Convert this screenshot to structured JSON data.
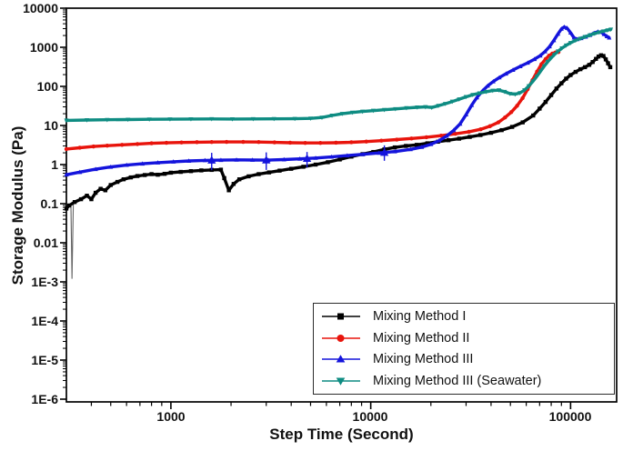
{
  "chart_data": {
    "type": "line",
    "scale": "log-log",
    "title": "",
    "xlabel": "Step Time (Second)",
    "ylabel": "Storage Modulus (Pa)",
    "xlim": [
      300,
      170000
    ],
    "ylim": [
      1e-06,
      10000
    ],
    "grid": false,
    "legend_position": "bottom-right",
    "x_tick_labels": [
      "1000",
      "10000",
      "100000"
    ],
    "x_tick_values": [
      1000,
      10000,
      100000
    ],
    "y_tick_labels": [
      "10000",
      "1000",
      "100",
      "10",
      "1",
      "0.1",
      "0.01",
      "1E-3",
      "1E-4",
      "1E-5",
      "1E-6"
    ],
    "y_tick_values": [
      10000,
      1000,
      100,
      10,
      1,
      0.1,
      0.01,
      0.001,
      0.0001,
      1e-05,
      1e-06
    ],
    "series": [
      {
        "name": "Mixing Method I",
        "color": "#000000",
        "marker": "square",
        "points": [
          [
            300,
            0.075
          ],
          [
            310,
            0.09
          ],
          [
            330,
            0.11
          ],
          [
            355,
            0.13
          ],
          [
            380,
            0.16
          ],
          [
            400,
            0.13
          ],
          [
            420,
            0.19
          ],
          [
            445,
            0.24
          ],
          [
            470,
            0.22
          ],
          [
            500,
            0.3
          ],
          [
            540,
            0.36
          ],
          [
            580,
            0.42
          ],
          [
            630,
            0.47
          ],
          [
            680,
            0.51
          ],
          [
            740,
            0.54
          ],
          [
            800,
            0.57
          ],
          [
            860,
            0.55
          ],
          [
            930,
            0.58
          ],
          [
            1000,
            0.62
          ],
          [
            1120,
            0.65
          ],
          [
            1260,
            0.68
          ],
          [
            1420,
            0.71
          ],
          [
            1600,
            0.73
          ],
          [
            1780,
            0.74
          ],
          [
            1850,
            0.45
          ],
          [
            1950,
            0.22
          ],
          [
            2060,
            0.32
          ],
          [
            2200,
            0.42
          ],
          [
            2450,
            0.5
          ],
          [
            2750,
            0.57
          ],
          [
            3100,
            0.63
          ],
          [
            3500,
            0.7
          ],
          [
            4000,
            0.78
          ],
          [
            4600,
            0.88
          ],
          [
            5300,
            1.0
          ],
          [
            6100,
            1.15
          ],
          [
            7000,
            1.35
          ],
          [
            8000,
            1.6
          ],
          [
            9100,
            1.85
          ],
          [
            10300,
            2.1
          ],
          [
            11700,
            2.45
          ],
          [
            13200,
            2.75
          ],
          [
            15000,
            3.0
          ],
          [
            17000,
            3.2
          ],
          [
            19200,
            3.5
          ],
          [
            21700,
            3.85
          ],
          [
            24500,
            4.2
          ],
          [
            27700,
            4.6
          ],
          [
            31300,
            5.1
          ],
          [
            35400,
            5.7
          ],
          [
            40000,
            6.5
          ],
          [
            45200,
            7.6
          ],
          [
            51000,
            9.2
          ],
          [
            57600,
            12
          ],
          [
            65000,
            18
          ],
          [
            70000,
            27
          ],
          [
            75000,
            40
          ],
          [
            80000,
            60
          ],
          [
            85000,
            88
          ],
          [
            90000,
            120
          ],
          [
            95000,
            158
          ],
          [
            100000,
            195
          ],
          [
            106000,
            235
          ],
          [
            112000,
            275
          ],
          [
            118000,
            310
          ],
          [
            124000,
            355
          ],
          [
            129000,
            420
          ],
          [
            134000,
            505
          ],
          [
            138000,
            580
          ],
          [
            142000,
            625
          ],
          [
            146000,
            600
          ],
          [
            150000,
            490
          ],
          [
            154000,
            390
          ],
          [
            158000,
            310
          ]
        ]
      },
      {
        "name": "Mixing Method II",
        "color": "#e8140c",
        "marker": "circle",
        "points": [
          [
            300,
            2.5
          ],
          [
            350,
            2.7
          ],
          [
            410,
            2.9
          ],
          [
            480,
            3.05
          ],
          [
            570,
            3.2
          ],
          [
            680,
            3.35
          ],
          [
            800,
            3.5
          ],
          [
            950,
            3.6
          ],
          [
            1130,
            3.68
          ],
          [
            1350,
            3.74
          ],
          [
            1600,
            3.78
          ],
          [
            1900,
            3.8
          ],
          [
            2300,
            3.8
          ],
          [
            2750,
            3.77
          ],
          [
            3300,
            3.7
          ],
          [
            3950,
            3.62
          ],
          [
            4700,
            3.57
          ],
          [
            5600,
            3.57
          ],
          [
            6700,
            3.62
          ],
          [
            8000,
            3.72
          ],
          [
            9500,
            3.88
          ],
          [
            11300,
            4.1
          ],
          [
            13500,
            4.35
          ],
          [
            16000,
            4.65
          ],
          [
            19000,
            5.0
          ],
          [
            22500,
            5.5
          ],
          [
            26500,
            6.1
          ],
          [
            31000,
            6.9
          ],
          [
            35500,
            8.0
          ],
          [
            39500,
            9.6
          ],
          [
            43500,
            12
          ],
          [
            47000,
            16
          ],
          [
            50500,
            22
          ],
          [
            54000,
            32
          ],
          [
            57500,
            50
          ],
          [
            61000,
            85
          ],
          [
            64500,
            145
          ],
          [
            68000,
            240
          ],
          [
            71500,
            370
          ],
          [
            75000,
            500
          ],
          [
            78000,
            610
          ],
          [
            81000,
            690
          ],
          [
            84000,
            735
          ],
          [
            87000,
            755
          ]
        ]
      },
      {
        "name": "Mixing Method III",
        "color": "#1414dc",
        "marker": "triangle-up",
        "points": [
          [
            300,
            0.55
          ],
          [
            350,
            0.64
          ],
          [
            420,
            0.76
          ],
          [
            500,
            0.87
          ],
          [
            600,
            0.97
          ],
          [
            720,
            1.05
          ],
          [
            860,
            1.12
          ],
          [
            1030,
            1.18
          ],
          [
            1230,
            1.24
          ],
          [
            1480,
            1.28
          ],
          [
            1780,
            1.3
          ],
          [
            2130,
            1.32
          ],
          [
            2560,
            1.31
          ],
          [
            3070,
            1.3
          ],
          [
            3680,
            1.34
          ],
          [
            4420,
            1.4
          ],
          [
            5300,
            1.47
          ],
          [
            6360,
            1.57
          ],
          [
            7630,
            1.7
          ],
          [
            9150,
            1.83
          ],
          [
            11000,
            1.98
          ],
          [
            13200,
            2.15
          ],
          [
            15800,
            2.45
          ],
          [
            18000,
            2.8
          ],
          [
            20000,
            3.3
          ],
          [
            22000,
            4.1
          ],
          [
            24000,
            5.4
          ],
          [
            26000,
            7.5
          ],
          [
            28000,
            11
          ],
          [
            30000,
            19
          ],
          [
            32000,
            33
          ],
          [
            34000,
            52
          ],
          [
            36200,
            76
          ],
          [
            38500,
            103
          ],
          [
            41000,
            133
          ],
          [
            44000,
            168
          ],
          [
            47500,
            210
          ],
          [
            51500,
            262
          ],
          [
            56000,
            325
          ],
          [
            61000,
            400
          ],
          [
            66000,
            495
          ],
          [
            70500,
            610
          ],
          [
            74500,
            780
          ],
          [
            78500,
            1050
          ],
          [
            82500,
            1500
          ],
          [
            86500,
            2200
          ],
          [
            90000,
            2950
          ],
          [
            93000,
            3300
          ],
          [
            96000,
            3100
          ],
          [
            100000,
            2350
          ],
          [
            104000,
            1750
          ],
          [
            108000,
            1600
          ],
          [
            113000,
            1700
          ],
          [
            119000,
            1850
          ],
          [
            125000,
            2050
          ],
          [
            131000,
            2300
          ],
          [
            137000,
            2500
          ],
          [
            142000,
            2450
          ],
          [
            147000,
            2150
          ],
          [
            152000,
            1900
          ],
          [
            156000,
            1750
          ]
        ],
        "error_bars": [
          [
            1600,
            1.29,
            0.72,
            2.0
          ],
          [
            3000,
            1.3,
            0.73,
            2.05
          ],
          [
            4800,
            1.42,
            0.85,
            2.1
          ],
          [
            11700,
            2.03,
            1.25,
            3.1
          ]
        ]
      },
      {
        "name": "Mixing Method III (Seawater)",
        "color": "#0e8c82",
        "marker": "triangle-down",
        "points": [
          [
            300,
            13.5
          ],
          [
            380,
            13.8
          ],
          [
            480,
            14.0
          ],
          [
            610,
            14.2
          ],
          [
            780,
            14.4
          ],
          [
            990,
            14.5
          ],
          [
            1260,
            14.6
          ],
          [
            1600,
            14.7
          ],
          [
            2030,
            14.6
          ],
          [
            2580,
            14.7
          ],
          [
            3280,
            14.8
          ],
          [
            4170,
            14.9
          ],
          [
            5000,
            15.2
          ],
          [
            5700,
            16.0
          ],
          [
            6400,
            18.0
          ],
          [
            7200,
            20.0
          ],
          [
            8100,
            21.5
          ],
          [
            9100,
            22.8
          ],
          [
            10300,
            24
          ],
          [
            11700,
            25.2
          ],
          [
            13300,
            26.5
          ],
          [
            15100,
            28
          ],
          [
            17100,
            29.2
          ],
          [
            18800,
            29.8
          ],
          [
            20200,
            28.8
          ],
          [
            21800,
            32
          ],
          [
            23600,
            36
          ],
          [
            25600,
            41
          ],
          [
            27700,
            47
          ],
          [
            30000,
            54
          ],
          [
            32400,
            61
          ],
          [
            35000,
            67
          ],
          [
            37800,
            73
          ],
          [
            40800,
            78
          ],
          [
            43800,
            80
          ],
          [
            46800,
            73
          ],
          [
            49800,
            65
          ],
          [
            52800,
            63
          ],
          [
            55800,
            68
          ],
          [
            58800,
            80
          ],
          [
            61800,
            102
          ],
          [
            64800,
            135
          ],
          [
            67800,
            180
          ],
          [
            70800,
            245
          ],
          [
            73800,
            330
          ],
          [
            76800,
            425
          ],
          [
            79800,
            530
          ],
          [
            83000,
            650
          ],
          [
            86500,
            790
          ],
          [
            90500,
            950
          ],
          [
            95000,
            1120
          ],
          [
            100000,
            1300
          ],
          [
            106000,
            1500
          ],
          [
            112000,
            1680
          ],
          [
            118000,
            1850
          ],
          [
            125000,
            2050
          ],
          [
            132000,
            2250
          ],
          [
            139000,
            2420
          ],
          [
            146000,
            2580
          ],
          [
            153000,
            2730
          ],
          [
            159000,
            2870
          ]
        ]
      }
    ],
    "artifact_spike": {
      "series": "Mixing Method I",
      "t": 320,
      "from": 0.1,
      "to": 0.0012
    }
  }
}
